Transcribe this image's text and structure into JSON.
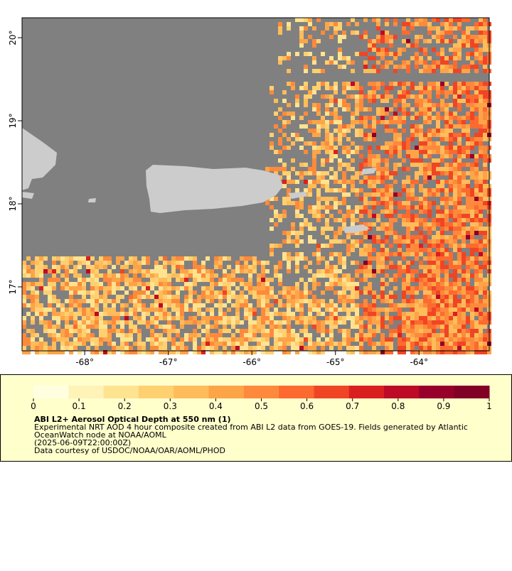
{
  "map": {
    "xlim": [
      -68.75,
      -63.16
    ],
    "ylim": [
      16.23,
      20.24
    ],
    "xticks": [
      {
        "value": -68,
        "label": "-68°"
      },
      {
        "value": -67,
        "label": "-67°"
      },
      {
        "value": -66,
        "label": "-66°"
      },
      {
        "value": -65,
        "label": "-65°"
      },
      {
        "value": -64,
        "label": "-64°"
      }
    ],
    "yticks": [
      {
        "value": 17,
        "label": "17°"
      },
      {
        "value": 18,
        "label": "18°"
      },
      {
        "value": 19,
        "label": "19°"
      },
      {
        "value": 20,
        "label": "20°"
      }
    ],
    "ocean_color": "#808080",
    "land_color": "#cccccc"
  },
  "colorbar": {
    "lim": [
      0,
      1
    ],
    "ticks": [
      0,
      0.1,
      0.2,
      0.3,
      0.4,
      0.5,
      0.6,
      0.7,
      0.8,
      0.9,
      1
    ],
    "colors": [
      "#ffffe0",
      "#fff3b8",
      "#fee391",
      "#fed070",
      "#febc5a",
      "#fda448",
      "#fd8a3c",
      "#fc6a30",
      "#f04525",
      "#d9201f",
      "#bd0a26",
      "#96002a",
      "#800026"
    ]
  },
  "legend": {
    "title": "ABI L2+ Aerosol Optical Depth at 550 nm (1)",
    "lines": [
      "Experimental NRT AOD 4 hour composite created from ABI L2 data from GOES-19. Fields generated by Atlantic",
      "OceanWatch node at NOAA/AOML",
      "(2025-06-09T22:00:00Z)",
      "Data courtesy of USDOC/NOAA/OAR/AOML/PHOD"
    ]
  }
}
